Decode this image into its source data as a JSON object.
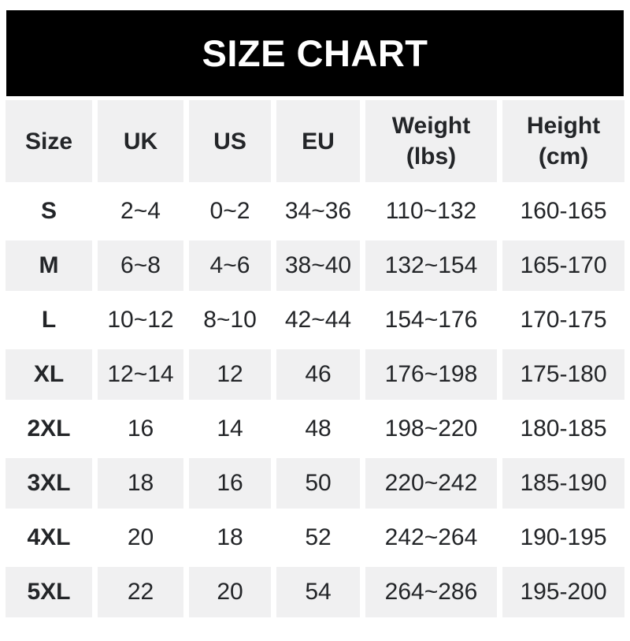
{
  "page": {
    "banner_title": "SIZE CHART"
  },
  "colors": {
    "banner_bg": "#000000",
    "banner_text": "#ffffff",
    "stripe_bg": "#f0f0f1",
    "text": "#232528",
    "page_bg": "#ffffff"
  },
  "chart_data": {
    "type": "table",
    "title": "SIZE CHART",
    "columns": [
      "Size",
      "UK",
      "US",
      "EU",
      "Weight\n(lbs)",
      "Height\n(cm)"
    ],
    "rows": [
      {
        "size": "S",
        "uk": "2~4",
        "us": "0~2",
        "eu": "34~36",
        "weight": "110~132",
        "height": "160-165"
      },
      {
        "size": "M",
        "uk": "6~8",
        "us": "4~6",
        "eu": "38~40",
        "weight": "132~154",
        "height": "165-170"
      },
      {
        "size": "L",
        "uk": "10~12",
        "us": "8~10",
        "eu": "42~44",
        "weight": "154~176",
        "height": "170-175"
      },
      {
        "size": "XL",
        "uk": "12~14",
        "us": "12",
        "eu": "46",
        "weight": "176~198",
        "height": "175-180"
      },
      {
        "size": "2XL",
        "uk": "16",
        "us": "14",
        "eu": "48",
        "weight": "198~220",
        "height": "180-185"
      },
      {
        "size": "3XL",
        "uk": "18",
        "us": "16",
        "eu": "50",
        "weight": "220~242",
        "height": "185-190"
      },
      {
        "size": "4XL",
        "uk": "20",
        "us": "18",
        "eu": "52",
        "weight": "242~264",
        "height": "190-195"
      },
      {
        "size": "5XL",
        "uk": "22",
        "us": "20",
        "eu": "54",
        "weight": "264~286",
        "height": "195-200"
      }
    ],
    "layout": {
      "striped": true,
      "striped_rows": [
        "header",
        "M",
        "XL",
        "3XL",
        "5XL"
      ],
      "grid": "white gutters between cells, no borders"
    }
  }
}
